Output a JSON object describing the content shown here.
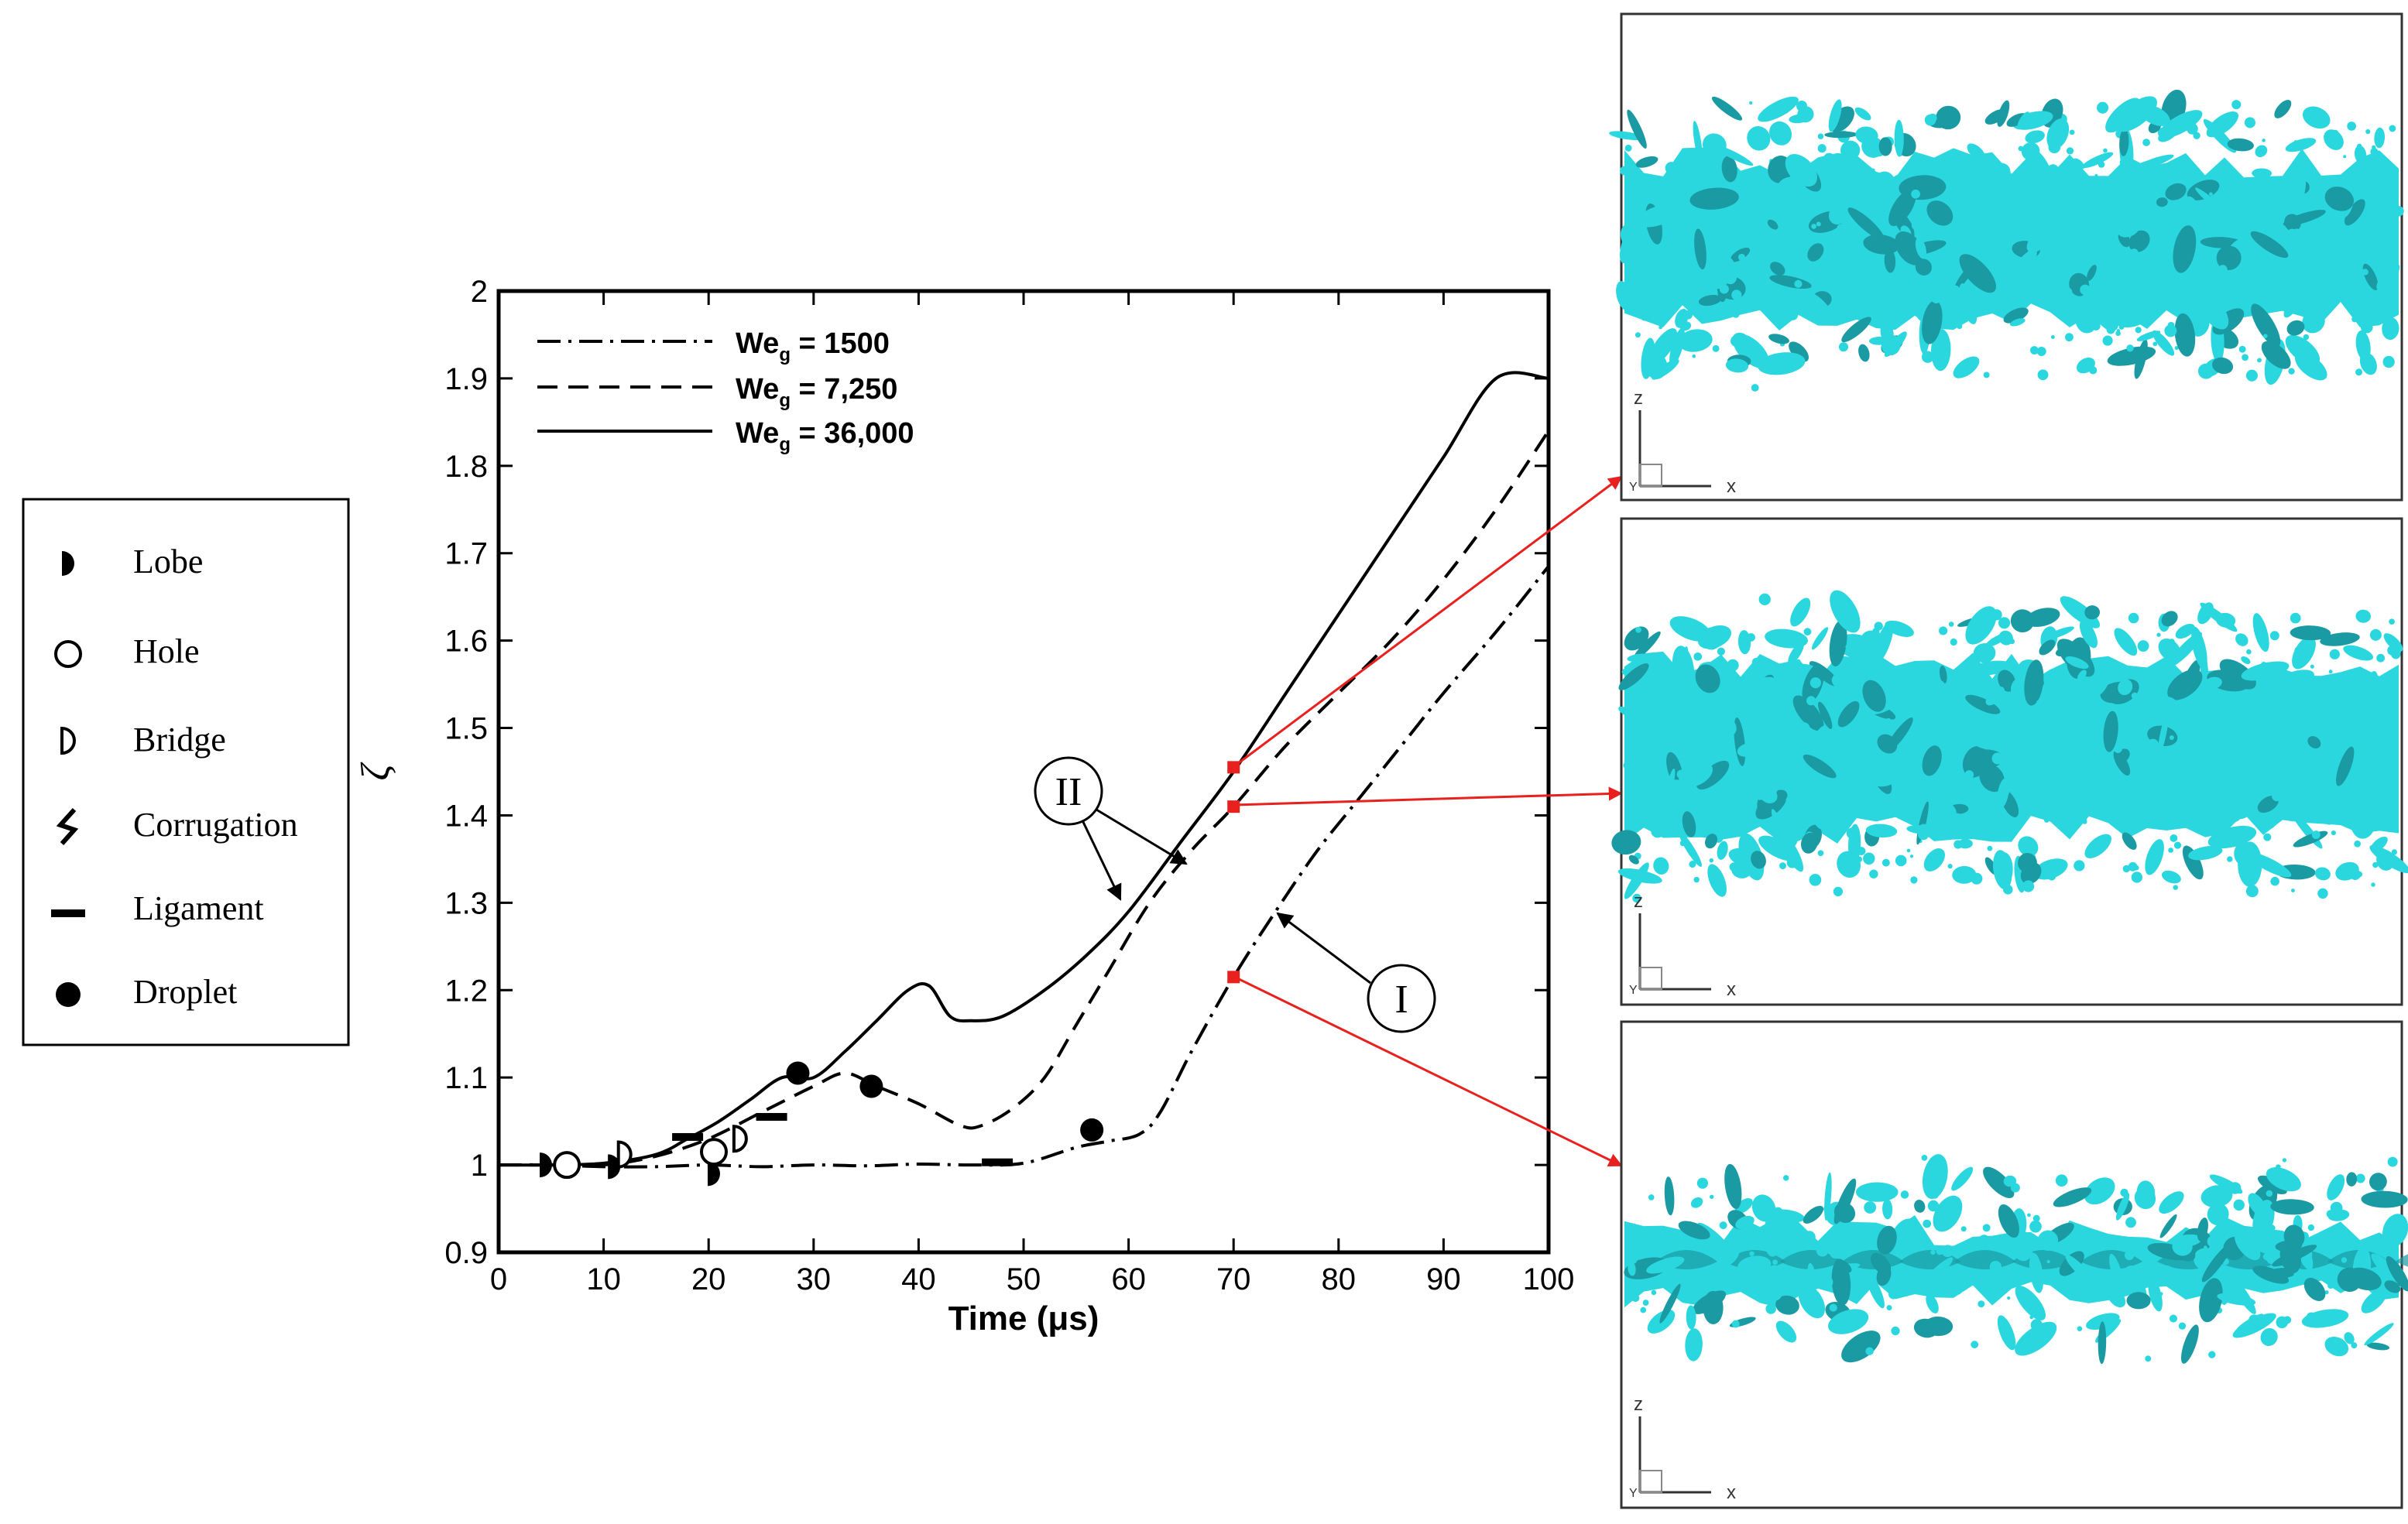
{
  "chart_data": {
    "type": "line",
    "title": "",
    "xlabel": "Time (μs)",
    "ylabel": "ζ",
    "xlim": [
      0,
      100
    ],
    "ylim": [
      0.9,
      2.0
    ],
    "xticks": [
      0,
      10,
      20,
      30,
      40,
      50,
      60,
      70,
      80,
      90,
      100
    ],
    "yticks": [
      0.9,
      1,
      1.1,
      1.2,
      1.3,
      1.4,
      1.5,
      1.6,
      1.7,
      1.8,
      1.9,
      2
    ],
    "grid": false,
    "legend_position": "top-left",
    "series": [
      {
        "name": "We_g = 1500",
        "legend_base": "We",
        "legend_sub": "g",
        "legend_value": " = 1500",
        "style": "dash-dot",
        "x": [
          0,
          5,
          10,
          15,
          20,
          25,
          30,
          35,
          40,
          45,
          50,
          55,
          58,
          61,
          63,
          66,
          70,
          74,
          78,
          82,
          86,
          90,
          95,
          100
        ],
        "y": [
          1.0,
          1.0,
          0.998,
          0.998,
          1.0,
          0.998,
          1.0,
          0.999,
          1.001,
          1.0,
          1.002,
          1.02,
          1.027,
          1.035,
          1.06,
          1.13,
          1.215,
          1.29,
          1.36,
          1.42,
          1.48,
          1.54,
          1.61,
          1.685
        ]
      },
      {
        "name": "We_g = 7,250",
        "legend_base": "We",
        "legend_sub": "g",
        "legend_value": " = 7,250",
        "style": "dashed",
        "x": [
          0,
          5,
          10,
          15,
          20,
          25,
          30,
          33,
          36,
          40,
          44,
          46,
          49,
          52,
          55,
          58,
          62,
          66,
          70,
          75,
          80,
          85,
          90,
          95,
          100
        ],
        "y": [
          1.0,
          1.0,
          1.0,
          1.01,
          1.03,
          1.06,
          1.09,
          1.105,
          1.09,
          1.07,
          1.045,
          1.045,
          1.065,
          1.1,
          1.16,
          1.22,
          1.3,
          1.36,
          1.41,
          1.48,
          1.54,
          1.6,
          1.67,
          1.75,
          1.84
        ]
      },
      {
        "name": "We_g = 36,000",
        "legend_base": "We",
        "legend_sub": "g",
        "legend_value": " = 36,000",
        "style": "solid",
        "x": [
          0,
          5,
          10,
          15,
          18,
          21,
          24,
          27,
          30,
          33,
          36,
          39,
          41,
          43,
          45,
          48,
          52,
          56,
          60,
          65,
          70,
          75,
          80,
          85,
          90,
          95,
          100
        ],
        "y": [
          1.0,
          1.0,
          1.002,
          1.012,
          1.03,
          1.05,
          1.075,
          1.1,
          1.1,
          1.13,
          1.165,
          1.2,
          1.205,
          1.17,
          1.165,
          1.17,
          1.2,
          1.24,
          1.29,
          1.37,
          1.45,
          1.54,
          1.63,
          1.72,
          1.81,
          1.9,
          1.9
        ]
      }
    ],
    "markers": [
      {
        "type": "lobe",
        "x": 4.5,
        "y": 1.0
      },
      {
        "type": "hole",
        "x": 6.5,
        "y": 1.0
      },
      {
        "type": "lobe",
        "x": 11,
        "y": 0.998
      },
      {
        "type": "bridge",
        "x": 12,
        "y": 1.012
      },
      {
        "type": "ligament",
        "x": 18,
        "y": 1.032
      },
      {
        "type": "lobe",
        "x": 20.5,
        "y": 0.99
      },
      {
        "type": "hole",
        "x": 20.5,
        "y": 1.015
      },
      {
        "type": "bridge",
        "x": 23,
        "y": 1.03
      },
      {
        "type": "ligament",
        "x": 26,
        "y": 1.055
      },
      {
        "type": "droplet",
        "x": 28.5,
        "y": 1.105
      },
      {
        "type": "droplet",
        "x": 35.5,
        "y": 1.09
      },
      {
        "type": "ligament",
        "x": 47.5,
        "y": 1.003
      },
      {
        "type": "droplet",
        "x": 56.5,
        "y": 1.04
      }
    ],
    "highlight_points": [
      {
        "x": 70,
        "y": 1.455
      },
      {
        "x": 70,
        "y": 1.41
      },
      {
        "x": 70,
        "y": 1.215
      }
    ],
    "annotations": [
      {
        "label": "II",
        "targets": [
          {
            "x": 59,
            "y": 1.3
          },
          {
            "x": 65.5,
            "y": 1.37
          }
        ]
      },
      {
        "label": "I",
        "targets": [
          {
            "x": 74,
            "y": 1.29
          }
        ]
      }
    ]
  },
  "regime_legend": {
    "items": [
      {
        "symbol": "lobe",
        "label": "Lobe"
      },
      {
        "symbol": "hole",
        "label": "Hole"
      },
      {
        "symbol": "bridge",
        "label": "Bridge"
      },
      {
        "symbol": "corrugation",
        "label": "Corrugation"
      },
      {
        "symbol": "ligament",
        "label": "Ligament"
      },
      {
        "symbol": "droplet",
        "label": "Droplet"
      }
    ]
  },
  "panels": [
    {
      "axis_z": "z",
      "axis_x": "x",
      "axis_y": "Y"
    },
    {
      "axis_z": "z",
      "axis_x": "x",
      "axis_y": "Y"
    },
    {
      "axis_z": "z",
      "axis_x": "x",
      "axis_y": "Y"
    }
  ],
  "colors": {
    "line": "#000000",
    "highlight": "#e8201e",
    "arrow": "#e8201e",
    "liquid": "#2bd7df",
    "liquid_dark": "#1a9aa3"
  }
}
